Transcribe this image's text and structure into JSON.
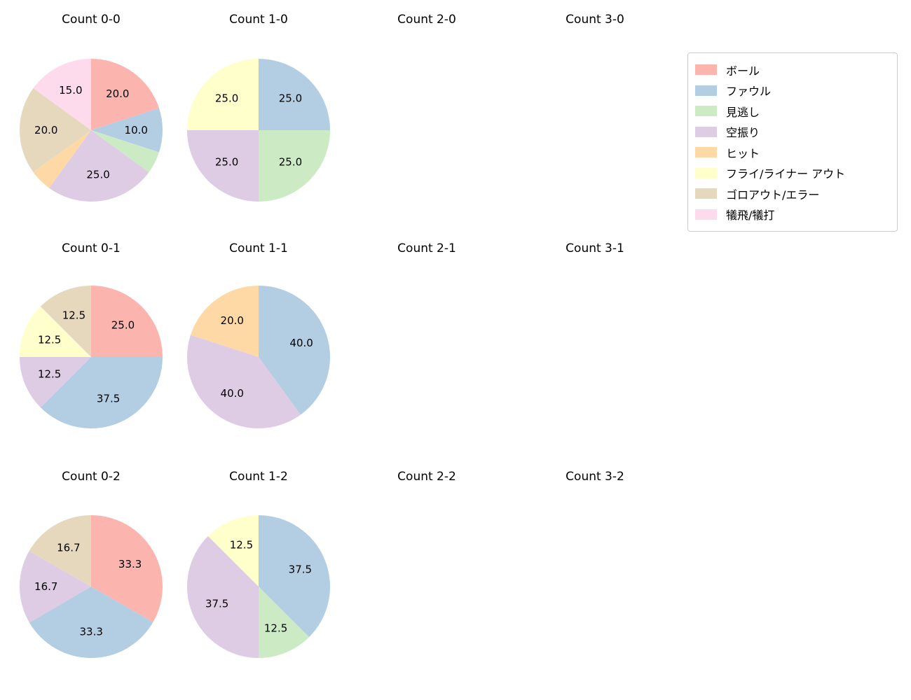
{
  "figure": {
    "background": "#ffffff",
    "text_color": "#000000"
  },
  "legend": {
    "items": [
      {
        "label": "ボール",
        "color": "#fbb4ae"
      },
      {
        "label": "ファウル",
        "color": "#b3cde3"
      },
      {
        "label": "見逃し",
        "color": "#ccebc5"
      },
      {
        "label": "空振り",
        "color": "#decbe4"
      },
      {
        "label": "ヒット",
        "color": "#fed9a6"
      },
      {
        "label": "フライ/ライナー アウト",
        "color": "#ffffcc"
      },
      {
        "label": "ゴロアウト/エラー",
        "color": "#e5d8bd"
      },
      {
        "label": "犠飛/犠打",
        "color": "#fddaec"
      }
    ]
  },
  "chart_data": [
    {
      "type": "pie",
      "title": "Count 0-0",
      "start_angle_deg": 0,
      "direction": "clockwise",
      "slices": [
        {
          "category": "ボール",
          "value": 20.0,
          "label": "20.0"
        },
        {
          "category": "ファウル",
          "value": 10.0,
          "label": "10.0"
        },
        {
          "category": "見逃し",
          "value": 5.0,
          "label": ""
        },
        {
          "category": "空振り",
          "value": 25.0,
          "label": "25.0"
        },
        {
          "category": "ヒット",
          "value": 5.0,
          "label": ""
        },
        {
          "category": "ゴロアウト/エラー",
          "value": 20.0,
          "label": "20.0"
        },
        {
          "category": "犠飛/犠打",
          "value": 15.0,
          "label": "15.0"
        }
      ]
    },
    {
      "type": "pie",
      "title": "Count 1-0",
      "start_angle_deg": 0,
      "direction": "clockwise",
      "slices": [
        {
          "category": "ファウル",
          "value": 25.0,
          "label": "25.0"
        },
        {
          "category": "見逃し",
          "value": 25.0,
          "label": "25.0"
        },
        {
          "category": "空振り",
          "value": 25.0,
          "label": "25.0"
        },
        {
          "category": "フライ/ライナー アウト",
          "value": 25.0,
          "label": "25.0"
        }
      ]
    },
    {
      "type": "pie",
      "title": "Count 2-0",
      "slices": []
    },
    {
      "type": "pie",
      "title": "Count 3-0",
      "slices": []
    },
    {
      "type": "pie",
      "title": "Count 0-1",
      "start_angle_deg": 0,
      "direction": "clockwise",
      "slices": [
        {
          "category": "ボール",
          "value": 25.0,
          "label": "25.0"
        },
        {
          "category": "ファウル",
          "value": 37.5,
          "label": "37.5"
        },
        {
          "category": "空振り",
          "value": 12.5,
          "label": "12.5"
        },
        {
          "category": "フライ/ライナー アウト",
          "value": 12.5,
          "label": "12.5"
        },
        {
          "category": "ゴロアウト/エラー",
          "value": 12.5,
          "label": "12.5"
        }
      ]
    },
    {
      "type": "pie",
      "title": "Count 1-1",
      "start_angle_deg": 0,
      "direction": "clockwise",
      "slices": [
        {
          "category": "ファウル",
          "value": 40.0,
          "label": "40.0"
        },
        {
          "category": "空振り",
          "value": 40.0,
          "label": "40.0"
        },
        {
          "category": "ヒット",
          "value": 20.0,
          "label": "20.0"
        }
      ]
    },
    {
      "type": "pie",
      "title": "Count 2-1",
      "slices": []
    },
    {
      "type": "pie",
      "title": "Count 3-1",
      "slices": []
    },
    {
      "type": "pie",
      "title": "Count 0-2",
      "start_angle_deg": 0,
      "direction": "clockwise",
      "slices": [
        {
          "category": "ボール",
          "value": 33.3,
          "label": "33.3"
        },
        {
          "category": "ファウル",
          "value": 33.3,
          "label": "33.3"
        },
        {
          "category": "空振り",
          "value": 16.7,
          "label": "16.7"
        },
        {
          "category": "ゴロアウト/エラー",
          "value": 16.7,
          "label": "16.7"
        }
      ]
    },
    {
      "type": "pie",
      "title": "Count 1-2",
      "start_angle_deg": 0,
      "direction": "clockwise",
      "slices": [
        {
          "category": "ファウル",
          "value": 37.5,
          "label": "37.5"
        },
        {
          "category": "見逃し",
          "value": 12.5,
          "label": "12.5"
        },
        {
          "category": "空振り",
          "value": 37.5,
          "label": "37.5"
        },
        {
          "category": "フライ/ライナー アウト",
          "value": 12.5,
          "label": "12.5"
        }
      ]
    },
    {
      "type": "pie",
      "title": "Count 2-2",
      "slices": []
    },
    {
      "type": "pie",
      "title": "Count 3-2",
      "slices": []
    }
  ]
}
